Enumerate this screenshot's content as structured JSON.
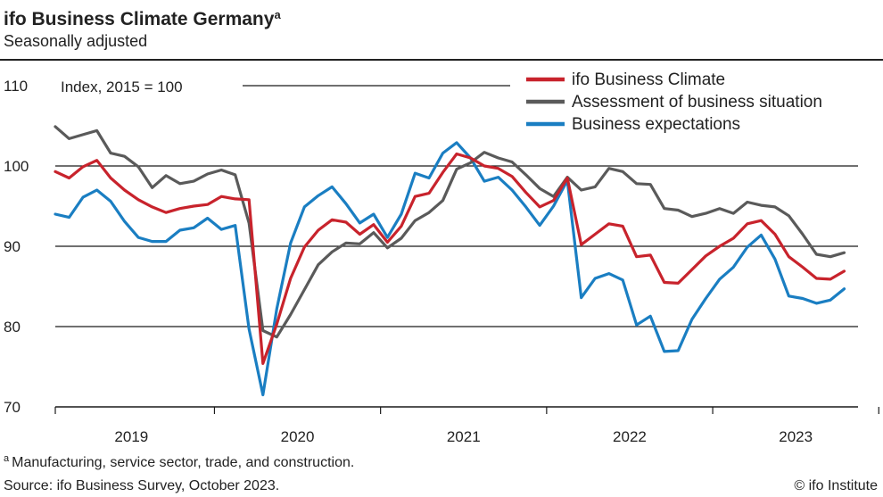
{
  "header": {
    "title": "ifo Business Climate Germany",
    "title_sup": "a",
    "subtitle": "Seasonally adjusted"
  },
  "footer": {
    "footnote_mark": "a",
    "footnote": "Manufacturing, service sector, trade, and construction.",
    "source": "Source: ifo Business Survey, October 2023.",
    "credit": "© ifo Institute"
  },
  "chart_data": {
    "type": "line",
    "title": "ifo Business Climate Germany",
    "subtitle": "Seasonally adjusted",
    "unit_label": "Index, 2015 = 100",
    "ylim": [
      70,
      112
    ],
    "yticks": [
      70,
      80,
      90,
      100,
      110
    ],
    "xlim": [
      0,
      58
    ],
    "year_labels": [
      "2019",
      "2020",
      "2021",
      "2022",
      "2023"
    ],
    "grid": "horizontal",
    "legend_position": "top-right",
    "x_description": "months, Jan 2019 (0) to Oct 2023 (57)",
    "series": [
      {
        "name": "ifo Business Climate",
        "color": "#c8232c",
        "values": [
          99.3,
          98.5,
          99.9,
          100.7,
          98.5,
          97.0,
          95.8,
          94.9,
          94.2,
          94.7,
          95.0,
          95.2,
          96.2,
          95.9,
          95.8,
          75.4,
          80.3,
          86.0,
          89.9,
          92.0,
          93.3,
          93.0,
          91.5,
          92.7,
          90.5,
          92.5,
          96.2,
          96.6,
          99.2,
          101.5,
          101.0,
          100.0,
          99.7,
          98.7,
          96.7,
          94.9,
          95.7,
          98.5,
          90.2,
          91.5,
          92.8,
          92.5,
          88.7,
          88.9,
          85.5,
          85.4,
          87.1,
          88.8,
          90.0,
          91.0,
          92.8,
          93.2,
          91.5,
          88.7,
          87.4,
          86.0,
          85.9,
          86.9
        ]
      },
      {
        "name": "Assessment of business situation",
        "color": "#5a5a5a",
        "values": [
          104.9,
          103.4,
          103.9,
          104.4,
          101.6,
          101.2,
          99.9,
          97.3,
          98.8,
          97.8,
          98.1,
          99.0,
          99.5,
          98.9,
          92.9,
          79.5,
          78.7,
          81.5,
          84.6,
          87.7,
          89.3,
          90.4,
          90.3,
          91.7,
          89.8,
          91.0,
          93.2,
          94.2,
          95.7,
          99.6,
          100.4,
          101.7,
          101.0,
          100.5,
          98.9,
          97.2,
          96.2,
          98.6,
          97.0,
          97.4,
          99.7,
          99.3,
          97.8,
          97.7,
          94.7,
          94.5,
          93.7,
          94.1,
          94.7,
          94.1,
          95.5,
          95.1,
          94.9,
          93.8,
          91.5,
          89.0,
          88.7,
          89.2
        ]
      },
      {
        "name": "Business expectations",
        "color": "#1a7ec2",
        "values": [
          94.0,
          93.6,
          96.1,
          97.0,
          95.6,
          93.1,
          91.1,
          90.6,
          90.6,
          92.0,
          92.3,
          93.5,
          92.1,
          92.6,
          79.7,
          71.5,
          82.2,
          90.4,
          94.9,
          96.3,
          97.4,
          95.3,
          92.9,
          94.0,
          91.1,
          94.0,
          99.1,
          98.5,
          101.6,
          102.9,
          101.0,
          98.1,
          98.6,
          97.0,
          94.9,
          92.6,
          95.0,
          98.2,
          83.6,
          86.0,
          86.6,
          85.8,
          80.2,
          81.3,
          76.9,
          77.0,
          80.9,
          83.5,
          85.9,
          87.4,
          89.9,
          91.4,
          88.4,
          83.8,
          83.5,
          82.9,
          83.3,
          84.7
        ]
      }
    ]
  }
}
